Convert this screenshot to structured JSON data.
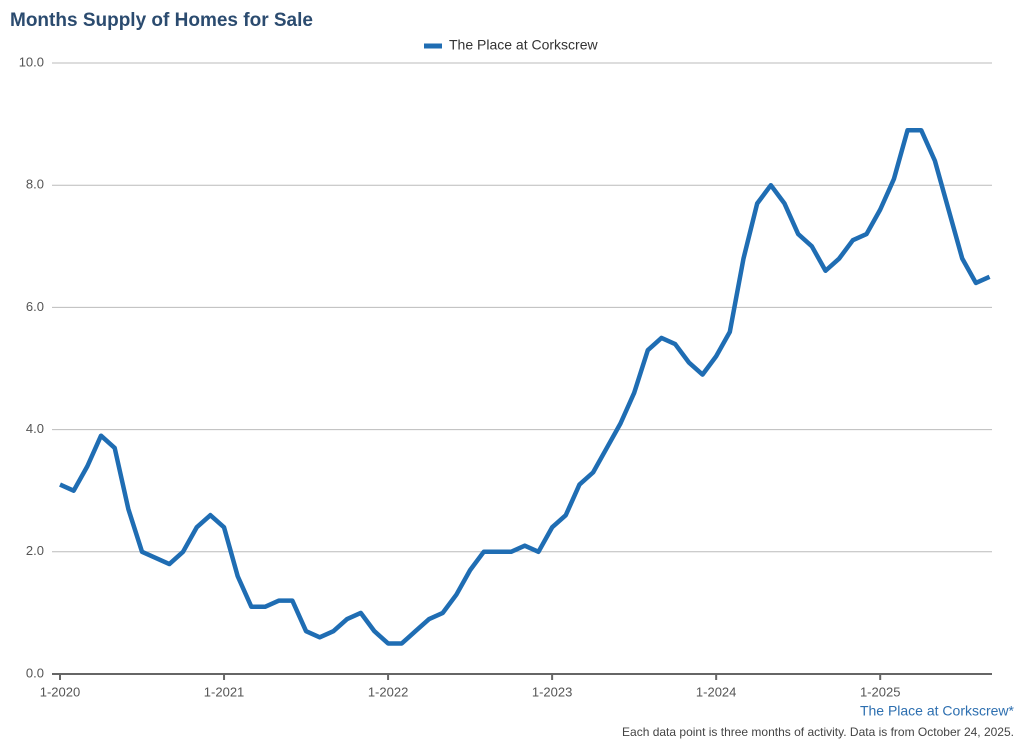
{
  "chart_data": {
    "type": "line",
    "title": "Months Supply of Homes for Sale",
    "source_label": "The Place at Corkscrew*",
    "footnote": "Each data point is three months of activity. Data is from October 24, 2025.",
    "categories": [
      "1-2020",
      null,
      null,
      null,
      null,
      null,
      null,
      null,
      null,
      null,
      null,
      null,
      "1-2021",
      null,
      null,
      null,
      null,
      null,
      null,
      null,
      null,
      null,
      null,
      null,
      "1-2022",
      null,
      null,
      null,
      null,
      null,
      null,
      null,
      null,
      null,
      null,
      null,
      "1-2023",
      null,
      null,
      null,
      null,
      null,
      null,
      null,
      null,
      null,
      null,
      null,
      "1-2024",
      null,
      null,
      null,
      null,
      null,
      null,
      null,
      null,
      null,
      null,
      null,
      "1-2025",
      null,
      null,
      null,
      null,
      null,
      null,
      null,
      null
    ],
    "series": [
      {
        "name": "The Place at Corkscrew",
        "color": "#1f6db3",
        "values": [
          3.1,
          3.0,
          3.4,
          3.9,
          3.7,
          2.7,
          2.0,
          1.9,
          1.8,
          2.0,
          2.4,
          2.6,
          2.4,
          1.6,
          1.1,
          1.1,
          1.2,
          1.2,
          0.7,
          0.6,
          0.7,
          0.9,
          1.0,
          0.7,
          0.5,
          0.5,
          0.7,
          0.9,
          1.0,
          1.3,
          1.7,
          2.0,
          2.0,
          2.0,
          2.1,
          2.0,
          2.4,
          2.6,
          3.1,
          3.3,
          3.7,
          4.1,
          4.6,
          5.3,
          5.5,
          5.4,
          5.1,
          4.9,
          5.2,
          5.6,
          6.8,
          7.7,
          8.0,
          7.7,
          7.2,
          7.0,
          6.6,
          6.8,
          7.1,
          7.2,
          7.6,
          8.1,
          8.9,
          8.9,
          8.4,
          7.6,
          6.8,
          6.4,
          6.5
        ]
      }
    ],
    "ylim": [
      0,
      10
    ],
    "yticks": [
      {
        "value": 0,
        "label": "0.0"
      },
      {
        "value": 2,
        "label": "2.0"
      },
      {
        "value": 4,
        "label": "4.0"
      },
      {
        "value": 6,
        "label": "6.0"
      },
      {
        "value": 8,
        "label": "8.0"
      },
      {
        "value": 10,
        "label": "10.0"
      }
    ],
    "grid": true
  }
}
